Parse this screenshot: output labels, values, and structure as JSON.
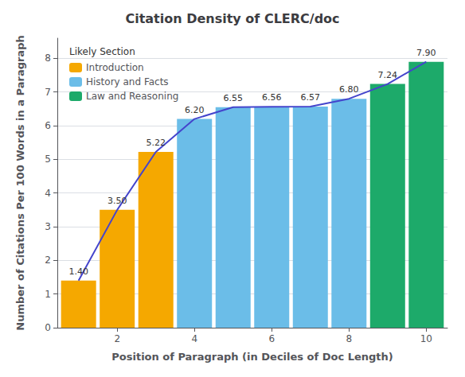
{
  "chart_data": {
    "type": "bar",
    "title": "Citation Density of CLERC/doc",
    "xlabel": "Position of Paragraph (in Deciles of Doc Length)",
    "ylabel": "Number of Citations Per 100 Words in a Paragraph",
    "legend_title": "Likely Section",
    "x": [
      1,
      2,
      3,
      4,
      5,
      6,
      7,
      8,
      9,
      10
    ],
    "series": [
      {
        "name": "Introduction",
        "color": "#F5A800",
        "values": [
          1.4,
          3.5,
          5.22,
          null,
          null,
          null,
          null,
          null,
          null,
          null
        ]
      },
      {
        "name": "History and Facts",
        "color": "#6BBDE8",
        "values": [
          null,
          null,
          null,
          6.2,
          6.55,
          6.56,
          6.57,
          6.8,
          null,
          null
        ]
      },
      {
        "name": "Law and Reasoning",
        "color": "#1DAA6A",
        "values": [
          null,
          null,
          null,
          null,
          null,
          null,
          null,
          null,
          7.24,
          7.9
        ]
      },
      {
        "type": "line",
        "color": "#4444CC",
        "values": [
          1.4,
          3.5,
          5.22,
          6.2,
          6.55,
          6.56,
          6.57,
          6.8,
          7.24,
          7.9
        ],
        "value_labels": [
          "1.40",
          "3.50",
          "5.22",
          "6.20",
          "6.55",
          "6.56",
          "6.57",
          "6.80",
          "7.24",
          "7.90"
        ],
        "data_labels": true
      }
    ],
    "xlim": [
      0.45,
      10.55
    ],
    "xticks": [
      2,
      4,
      6,
      8,
      10
    ],
    "ylim": [
      0,
      8.6
    ],
    "yticks": [
      0,
      1,
      2,
      3,
      4,
      5,
      6,
      7,
      8
    ],
    "grid": true,
    "legend": "upper left"
  }
}
